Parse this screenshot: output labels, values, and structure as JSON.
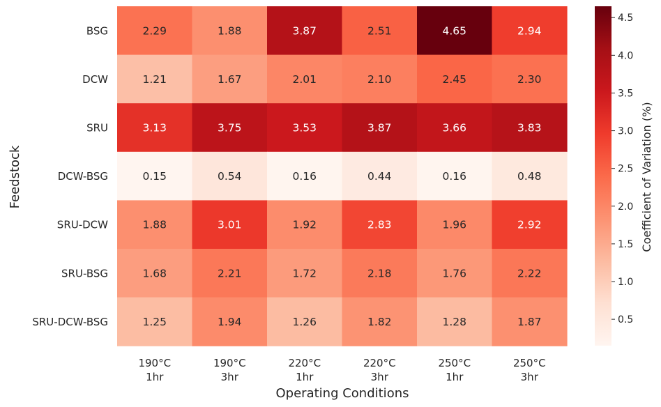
{
  "chart_data": {
    "type": "heatmap",
    "title": "",
    "xlabel": "Operating Conditions",
    "ylabel": "Feedstock",
    "x_categories": [
      [
        "190°C",
        "1hr"
      ],
      [
        "190°C",
        "3hr"
      ],
      [
        "220°C",
        "1hr"
      ],
      [
        "220°C",
        "3hr"
      ],
      [
        "250°C",
        "1hr"
      ],
      [
        "250°C",
        "3hr"
      ]
    ],
    "y_categories": [
      "BSG",
      "DCW",
      "SRU",
      "DCW-BSG",
      "SRU-DCW",
      "SRU-BSG",
      "SRU-DCW-BSG"
    ],
    "values": [
      [
        2.29,
        1.88,
        3.87,
        2.51,
        4.65,
        2.94
      ],
      [
        1.21,
        1.67,
        2.01,
        2.1,
        2.45,
        2.3
      ],
      [
        3.13,
        3.75,
        3.53,
        3.87,
        3.66,
        3.83
      ],
      [
        0.15,
        0.54,
        0.16,
        0.44,
        0.16,
        0.48
      ],
      [
        1.88,
        3.01,
        1.92,
        2.83,
        1.96,
        2.92
      ],
      [
        1.68,
        2.21,
        1.72,
        2.18,
        1.76,
        2.22
      ],
      [
        1.25,
        1.94,
        1.26,
        1.82,
        1.28,
        1.87
      ]
    ],
    "value_format": "0.00",
    "colorbar": {
      "label": "Coefficient of Variation (%)",
      "range": [
        0.15,
        4.65
      ],
      "ticks": [
        0.5,
        1.0,
        1.5,
        2.0,
        2.5,
        3.0,
        3.5,
        4.0,
        4.5
      ],
      "tick_labels": [
        "0.5",
        "1.0",
        "1.5",
        "2.0",
        "2.5",
        "3.0",
        "3.5",
        "4.0",
        "4.5"
      ]
    },
    "colormap": "Reds",
    "colormap_stops": [
      "#fff5f0",
      "#fee0d2",
      "#fcbba1",
      "#fc9272",
      "#fb6a4a",
      "#ef3b2c",
      "#cb181d",
      "#a50f15",
      "#67000d"
    ]
  }
}
